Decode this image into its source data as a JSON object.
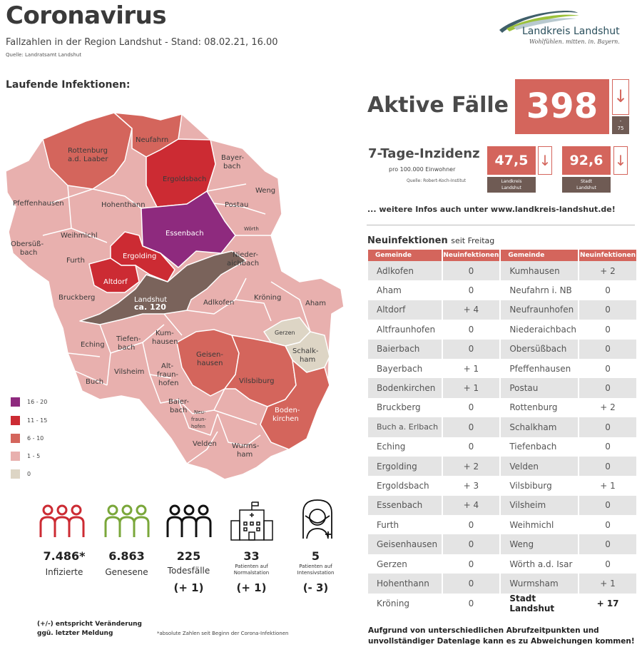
{
  "header": {
    "title": "Coronavirus",
    "subtitle": "Fallzahlen in der Region Landshut - Stand: 08.02.21, 16.00",
    "source": "Quelle: Landratsamt Landshut"
  },
  "logo": {
    "name": "Landkreis Landshut",
    "tagline": "Wohlfühlen. mitten. in. Bayern."
  },
  "map_section": {
    "heading": "Laufende Infektionen:",
    "landshut_label": "Landshut",
    "landshut_value": "ca. 120",
    "regions": {
      "rottenburg": "Rottenburg",
      "rottenburg2": "a.d. Laaber",
      "neufahrn": "Neufahrn",
      "ergoldsbach": "Ergoldsbach",
      "bayerbach1": "Bayer-",
      "bayerbach2": "bach",
      "weng": "Weng",
      "pfeffenhausen": "Pfeffenhausen",
      "hohenthann": "Hohenthann",
      "postau": "Postau",
      "essenbach": "Essenbach",
      "woerth": "Wörth",
      "weihmichl": "Weihmichl",
      "obersuess1": "Obersüß-",
      "obersuess2": "bach",
      "niederaich1": "Nieder-",
      "niederaich2": "aichbach",
      "furth": "Furth",
      "ergolding": "Ergolding",
      "altdorf": "Altdorf",
      "bruckberg": "Bruckberg",
      "adlkofen": "Adlkofen",
      "kroening": "Kröning",
      "aham": "Aham",
      "gerzen": "Gerzen",
      "schalk1": "Schalk-",
      "schalk2": "ham",
      "eching": "Eching",
      "tiefen1": "Tiefen-",
      "tiefen2": "bach",
      "kum1": "Kum-",
      "kum2": "hausen",
      "geisen1": "Geisen-",
      "geisen2": "hausen",
      "vilsheim": "Vilsheim",
      "alt1": "Alt-",
      "alt2": "fraun-",
      "alt3": "hofen",
      "vilsbiburg": "Vilsbiburg",
      "buch": "Buch",
      "baier1": "Baier-",
      "baier2": "bach",
      "neu1": "Neu-",
      "neu2": "fraun-",
      "neu3": "hofen",
      "boden1": "Boden-",
      "boden2": "kirchen",
      "velden": "Velden",
      "wurms1": "Wurms-",
      "wurms2": "ham"
    },
    "legend": [
      {
        "label": "16 - 20",
        "color": "#8e2a7e"
      },
      {
        "label": "11 - 15",
        "color": "#cc2b33"
      },
      {
        "label": "6 - 10",
        "color": "#d4655c"
      },
      {
        "label": "1 - 5",
        "color": "#e8b0ae"
      },
      {
        "label": "0",
        "color": "#ddd5c5"
      }
    ]
  },
  "active": {
    "label": "Aktive Fälle",
    "value": "398",
    "delta_sign": "-",
    "delta": "75"
  },
  "incidence": {
    "label": "7-Tage-Inzidenz",
    "sub": "pro 100.000 Einwohner",
    "source": "Quelle: Robert-Koch-Institut",
    "landkreis_value": "47,5",
    "landkreis_name1": "Landkreis",
    "landkreis_name2": "Landshut",
    "stadt_value": "92,6",
    "stadt_name1": "Stadt",
    "stadt_name2": "Landshut"
  },
  "more_info": "... weitere Infos auch unter www.landkreis-landshut.de!",
  "new_infections": {
    "heading": "Neuinfektionen",
    "heading_sub": "seit Freitag",
    "col_gemeinde": "Gemeinde",
    "col_neu": "Neuinfektionen",
    "rows": [
      [
        "Adlkofen",
        "0",
        "Kumhausen",
        "+ 2"
      ],
      [
        "Aham",
        "0",
        "Neufahrn i. NB",
        "0"
      ],
      [
        "Altdorf",
        "+ 4",
        "Neufraunhofen",
        "0"
      ],
      [
        "Altfraunhofen",
        "0",
        "Niederaichbach",
        "0"
      ],
      [
        "Baierbach",
        "0",
        "Obersüßbach",
        "0"
      ],
      [
        "Bayerbach",
        "+ 1",
        "Pfeffenhausen",
        "0"
      ],
      [
        "Bodenkirchen",
        "+ 1",
        "Postau",
        "0"
      ],
      [
        "Bruckberg",
        "0",
        "Rottenburg",
        "+ 2"
      ],
      [
        "Buch a. Erlbach",
        "0",
        "Schalkham",
        "0"
      ],
      [
        "Eching",
        "0",
        "Tiefenbach",
        "0"
      ],
      [
        "Ergolding",
        "+ 2",
        "Velden",
        "0"
      ],
      [
        "Ergoldsbach",
        "+ 3",
        "Vilsbiburg",
        "+ 1"
      ],
      [
        "Essenbach",
        "+ 4",
        "Vilsheim",
        "0"
      ],
      [
        "Furth",
        "0",
        "Weihmichl",
        "0"
      ],
      [
        "Geisenhausen",
        "0",
        "Weng",
        "0"
      ],
      [
        "Gerzen",
        "0",
        "Wörth a.d. Isar",
        "0"
      ],
      [
        "Hohenthann",
        "0",
        "Wurmsham",
        "+ 1"
      ],
      [
        "Kröning",
        "0",
        "Stadt Landshut",
        "+ 17"
      ]
    ]
  },
  "footnote1": "Aufgrund von unterschiedlichen Abrufzeitpunkten und",
  "footnote2": "unvollständiger Datenlage kann es zu Abweichungen kommen!",
  "stats": {
    "infected": {
      "value": "7.486*",
      "label": "Infizierte"
    },
    "recovered": {
      "value": "6.863",
      "label": "Genesene"
    },
    "deaths": {
      "value": "225",
      "label": "Todesfälle",
      "delta": "(+ 1)"
    },
    "normal": {
      "value": "33",
      "label1": "Patienten auf",
      "label2": "Normalstation",
      "delta": "(+ 1)"
    },
    "icu": {
      "value": "5",
      "label1": "Patienten auf",
      "label2": "Intensivstation",
      "delta": "(- 3)"
    }
  },
  "bottom_note1": "(+/-) entspricht Veränderung",
  "bottom_note2": "ggü. letzter Meldung",
  "bottom_note3": "*absolute Zahlen seit Beginn der Corona-Infektionen",
  "icons": {
    "logo": "landkreis-swoosh-logo",
    "arrow": "arrow-down-icon",
    "people": "people-group-icon",
    "hospital": "hospital-icon",
    "icu": "patient-mask-icon"
  },
  "colors": {
    "accent": "#d4655c",
    "dark": "#6f5b54",
    "red_dark": "#cc2b33",
    "purple": "#8e2a7e",
    "green": "#7aa73a"
  }
}
